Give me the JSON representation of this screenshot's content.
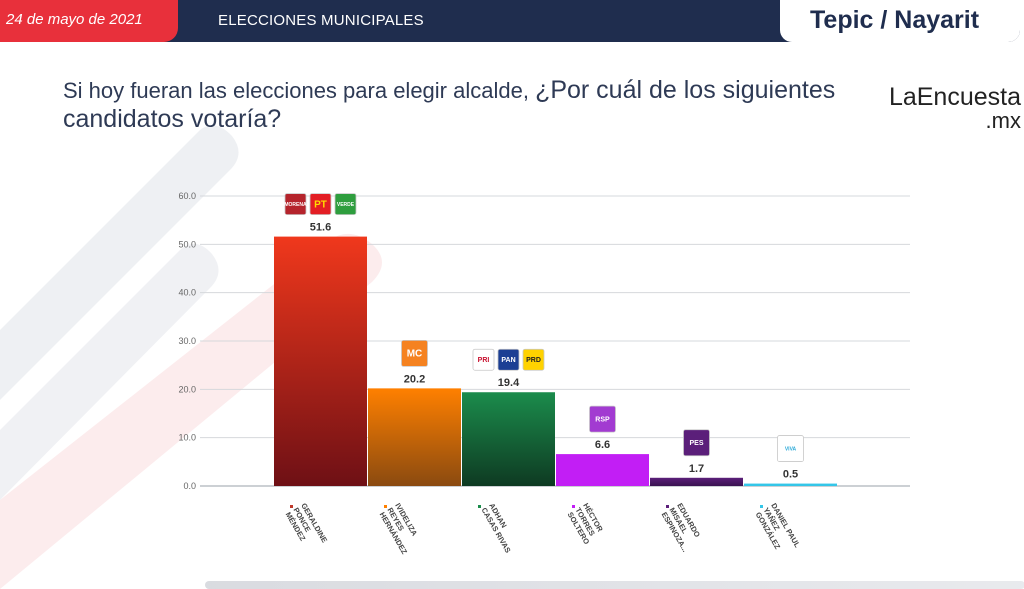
{
  "header": {
    "date": "24 de mayo de 2021",
    "section": "ELECCIONES MUNICIPALES",
    "location": "Tepic / Nayarit"
  },
  "question": {
    "part1": "Si hoy fueran las elecciones para elegir alcalde, ",
    "part2": "¿Por cuál de los siguientes candidatos votaría?"
  },
  "logo": {
    "line1": "LaEncuesta",
    "line2": ".mx"
  },
  "colors": {
    "header_bg": "#1f2d4e",
    "accent_red": "#e8303b"
  },
  "chart_data": {
    "type": "bar",
    "title": "",
    "xlabel": "",
    "ylabel": "",
    "ylim": [
      0,
      60
    ],
    "yticks": [
      0,
      10,
      20,
      30,
      40,
      50,
      60
    ],
    "ytick_labels": [
      "0.0",
      "10.0",
      "20.0",
      "30.0",
      "40.0",
      "50.0",
      "60.0"
    ],
    "grid": true,
    "categories": [
      [
        "GERALDINE",
        "PONCE",
        "MÉNDEZ"
      ],
      [
        "IVIDELIZA",
        "REYES",
        "HERNÁNDEZ"
      ],
      [
        "ADHAN",
        "CASAS RIVAS"
      ],
      [
        "HÉCTOR",
        "TORRES",
        "SOLTERO"
      ],
      [
        "EDUARDO",
        "MISAEL",
        "ESPINOZA..."
      ],
      [
        "DANIEL PAUL",
        "YAÑEZ",
        "GONZÁLEZ"
      ]
    ],
    "values": [
      51.6,
      20.2,
      19.4,
      6.6,
      1.7,
      0.5
    ],
    "value_labels": [
      "51.6",
      "20.2",
      "19.4",
      "6.6",
      "1.7",
      "0.5"
    ],
    "bar_colors": [
      [
        "#f0381c",
        "#6e1015"
      ],
      [
        "#ff8000",
        "#8a4a10"
      ],
      [
        "#1b8c4c",
        "#0e3a22"
      ],
      [
        "#c21ef5",
        "#c21ef5"
      ],
      [
        "#5b1f7a",
        "#3a1250"
      ],
      [
        "#34c6e8",
        "#34c6e8"
      ]
    ],
    "dot_colors": [
      "#c0392b",
      "#ff8000",
      "#1b8c4c",
      "#c21ef5",
      "#5b1f7a",
      "#34c6e8"
    ],
    "party_logos": [
      [
        {
          "text": "MORENA",
          "bg": "#b5242c",
          "fg": "#ffffff"
        },
        {
          "text": "PT",
          "bg": "#e31e24",
          "fg": "#ffdd00"
        },
        {
          "text": "VERDE",
          "bg": "#2e9e3e",
          "fg": "#ffffff"
        }
      ],
      [
        {
          "text": "MC",
          "bg": "#f58220",
          "fg": "#ffffff"
        }
      ],
      [
        {
          "text": "PRI",
          "bg": "#ffffff",
          "fg": "#c8102e"
        },
        {
          "text": "PAN",
          "bg": "#1c3f94",
          "fg": "#ffffff"
        },
        {
          "text": "PRD",
          "bg": "#ffd200",
          "fg": "#222222"
        }
      ],
      [
        {
          "text": "RSP",
          "bg": "#a23bd1",
          "fg": "#ffffff"
        }
      ],
      [
        {
          "text": "PES",
          "bg": "#5b1f7a",
          "fg": "#ffffff"
        }
      ],
      [
        {
          "text": "VIVA",
          "bg": "#ffffff",
          "fg": "#29a9d8"
        }
      ]
    ]
  }
}
